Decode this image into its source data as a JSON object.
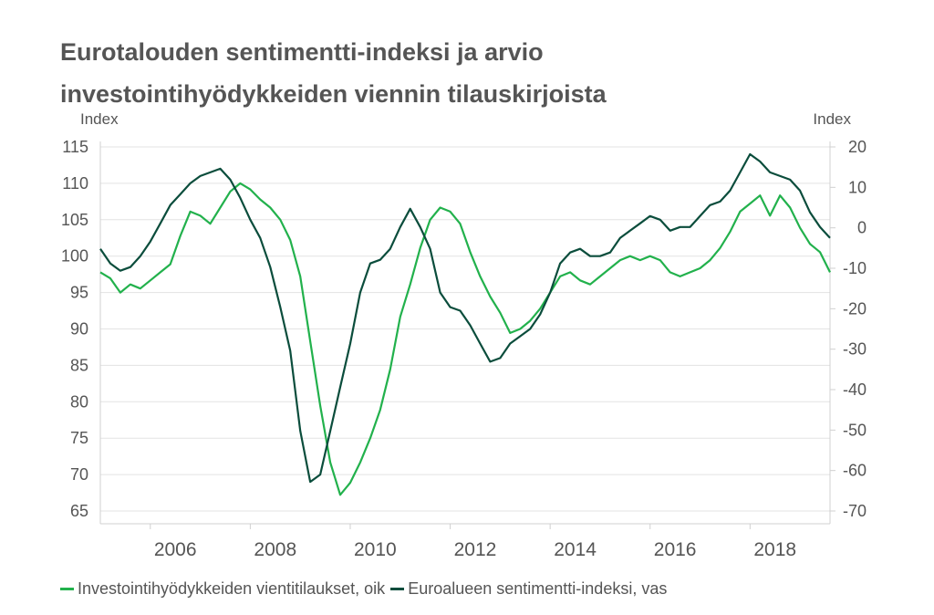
{
  "title_line1": "Eurotalouden sentimentti-indeksi ja arvio",
  "title_line2": "investointihyödykkeiden viennin tilauskirjoista",
  "colors": {
    "esi": "#0b4d3c",
    "export": "#22b14c",
    "grid": "#e3e3e3",
    "axis": "#d0d0d0",
    "text": "#555555"
  },
  "chart_data": {
    "type": "line",
    "title": "Eurotalouden sentimentti-indeksi ja arvio investointihyödykkeiden viennin tilauskirjoista",
    "left_axis": {
      "label": "Index",
      "range": [
        65,
        115
      ],
      "ticks": [
        "115",
        "110",
        "105",
        "100",
        "95",
        "90",
        "85",
        "80",
        "75",
        "70",
        "65"
      ]
    },
    "right_axis": {
      "label": "Index",
      "range": [
        -70,
        20
      ],
      "ticks": [
        "20",
        "10",
        "0",
        "-10",
        "-20",
        "-30",
        "-40",
        "-50",
        "-60",
        "-70"
      ]
    },
    "x_axis": {
      "range": [
        2005.0,
        2019.6
      ],
      "ticks": [
        "2006",
        "2008",
        "2010",
        "2012",
        "2014",
        "2016",
        "2018"
      ]
    },
    "grid": true,
    "legend_position": "bottom",
    "series": [
      {
        "name": "Investointihyödykkeiden vientitilaukset, oik",
        "axis": "right",
        "color": "#22b14c",
        "points": [
          [
            2005.0,
            -11
          ],
          [
            2005.2,
            -12.5
          ],
          [
            2005.4,
            -16
          ],
          [
            2005.6,
            -14
          ],
          [
            2005.8,
            -15
          ],
          [
            2006.0,
            -13
          ],
          [
            2006.2,
            -11
          ],
          [
            2006.4,
            -9
          ],
          [
            2006.6,
            -2
          ],
          [
            2006.8,
            4
          ],
          [
            2007.0,
            3
          ],
          [
            2007.2,
            1
          ],
          [
            2007.4,
            5
          ],
          [
            2007.6,
            9
          ],
          [
            2007.8,
            11
          ],
          [
            2008.0,
            9.5
          ],
          [
            2008.2,
            7
          ],
          [
            2008.4,
            5
          ],
          [
            2008.6,
            2
          ],
          [
            2008.8,
            -3
          ],
          [
            2009.0,
            -12
          ],
          [
            2009.2,
            -28
          ],
          [
            2009.4,
            -44
          ],
          [
            2009.6,
            -58
          ],
          [
            2009.8,
            -66
          ],
          [
            2010.0,
            -63
          ],
          [
            2010.2,
            -58
          ],
          [
            2010.4,
            -52
          ],
          [
            2010.6,
            -45
          ],
          [
            2010.8,
            -35
          ],
          [
            2011.0,
            -22
          ],
          [
            2011.2,
            -14
          ],
          [
            2011.4,
            -5
          ],
          [
            2011.6,
            2
          ],
          [
            2011.8,
            5
          ],
          [
            2012.0,
            4
          ],
          [
            2012.2,
            1
          ],
          [
            2012.4,
            -6
          ],
          [
            2012.6,
            -12
          ],
          [
            2012.8,
            -17
          ],
          [
            2013.0,
            -21
          ],
          [
            2013.2,
            -26
          ],
          [
            2013.4,
            -25
          ],
          [
            2013.6,
            -23
          ],
          [
            2013.8,
            -20
          ],
          [
            2014.0,
            -16
          ],
          [
            2014.2,
            -12
          ],
          [
            2014.4,
            -11
          ],
          [
            2014.6,
            -13
          ],
          [
            2014.8,
            -14
          ],
          [
            2015.0,
            -12
          ],
          [
            2015.2,
            -10
          ],
          [
            2015.4,
            -8
          ],
          [
            2015.6,
            -7
          ],
          [
            2015.8,
            -8
          ],
          [
            2016.0,
            -7
          ],
          [
            2016.2,
            -8
          ],
          [
            2016.4,
            -11
          ],
          [
            2016.6,
            -12
          ],
          [
            2016.8,
            -11
          ],
          [
            2017.0,
            -10
          ],
          [
            2017.2,
            -8
          ],
          [
            2017.4,
            -5
          ],
          [
            2017.6,
            -1
          ],
          [
            2017.8,
            4
          ],
          [
            2018.0,
            6
          ],
          [
            2018.2,
            8
          ],
          [
            2018.4,
            3
          ],
          [
            2018.6,
            8
          ],
          [
            2018.8,
            5
          ],
          [
            2019.0,
            0
          ],
          [
            2019.2,
            -4
          ],
          [
            2019.4,
            -6
          ],
          [
            2019.6,
            -11
          ]
        ]
      },
      {
        "name": "Euroalueen sentimentti-indeksi, vas",
        "axis": "left",
        "color": "#0b4d3c",
        "points": [
          [
            2005.0,
            101
          ],
          [
            2005.2,
            99
          ],
          [
            2005.4,
            98
          ],
          [
            2005.6,
            98.5
          ],
          [
            2005.8,
            100
          ],
          [
            2006.0,
            102
          ],
          [
            2006.2,
            104.5
          ],
          [
            2006.4,
            107
          ],
          [
            2006.6,
            108.5
          ],
          [
            2006.8,
            110
          ],
          [
            2007.0,
            111
          ],
          [
            2007.2,
            111.5
          ],
          [
            2007.4,
            112
          ],
          [
            2007.6,
            110.5
          ],
          [
            2007.8,
            108
          ],
          [
            2008.0,
            105
          ],
          [
            2008.2,
            102.5
          ],
          [
            2008.4,
            98.5
          ],
          [
            2008.6,
            93
          ],
          [
            2008.8,
            87
          ],
          [
            2009.0,
            76
          ],
          [
            2009.2,
            69
          ],
          [
            2009.4,
            70
          ],
          [
            2009.6,
            76
          ],
          [
            2009.8,
            82
          ],
          [
            2010.0,
            88
          ],
          [
            2010.2,
            95
          ],
          [
            2010.4,
            99
          ],
          [
            2010.6,
            99.5
          ],
          [
            2010.8,
            101
          ],
          [
            2011.0,
            104
          ],
          [
            2011.2,
            106.5
          ],
          [
            2011.4,
            104
          ],
          [
            2011.6,
            101
          ],
          [
            2011.8,
            95
          ],
          [
            2012.0,
            93
          ],
          [
            2012.2,
            92.5
          ],
          [
            2012.4,
            90.5
          ],
          [
            2012.6,
            88
          ],
          [
            2012.8,
            85.5
          ],
          [
            2013.0,
            86
          ],
          [
            2013.2,
            88
          ],
          [
            2013.4,
            89
          ],
          [
            2013.6,
            90
          ],
          [
            2013.8,
            92
          ],
          [
            2014.0,
            95
          ],
          [
            2014.2,
            99
          ],
          [
            2014.4,
            100.5
          ],
          [
            2014.6,
            101
          ],
          [
            2014.8,
            100
          ],
          [
            2015.0,
            100
          ],
          [
            2015.2,
            100.5
          ],
          [
            2015.4,
            102.5
          ],
          [
            2015.6,
            103.5
          ],
          [
            2015.8,
            104.5
          ],
          [
            2016.0,
            105.5
          ],
          [
            2016.2,
            105
          ],
          [
            2016.4,
            103.5
          ],
          [
            2016.6,
            104
          ],
          [
            2016.8,
            104
          ],
          [
            2017.0,
            105.5
          ],
          [
            2017.2,
            107
          ],
          [
            2017.4,
            107.5
          ],
          [
            2017.6,
            109
          ],
          [
            2017.8,
            111.5
          ],
          [
            2018.0,
            114
          ],
          [
            2018.2,
            113
          ],
          [
            2018.4,
            111.5
          ],
          [
            2018.6,
            111
          ],
          [
            2018.8,
            110.5
          ],
          [
            2019.0,
            109
          ],
          [
            2019.2,
            106
          ],
          [
            2019.4,
            104
          ],
          [
            2019.6,
            102.5
          ]
        ]
      }
    ]
  }
}
